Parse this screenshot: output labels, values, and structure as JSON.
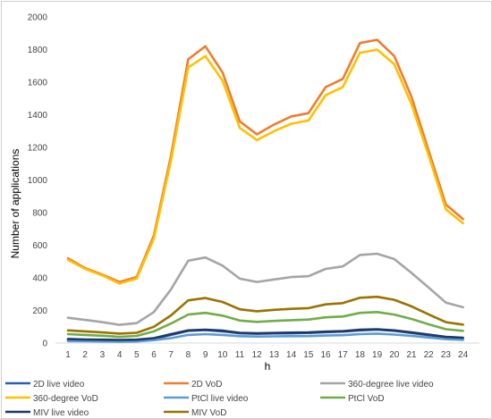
{
  "chart_data": {
    "type": "line",
    "title": "",
    "xlabel": "h",
    "ylabel": "Number of applications",
    "ylim": [
      0,
      2000
    ],
    "yticks": [
      0,
      200,
      400,
      600,
      800,
      1000,
      1200,
      1400,
      1600,
      1800,
      2000
    ],
    "grid": "none",
    "legend_position": "bottom",
    "x": [
      1,
      2,
      3,
      4,
      5,
      6,
      7,
      8,
      9,
      10,
      11,
      12,
      13,
      14,
      15,
      16,
      17,
      18,
      19,
      20,
      21,
      22,
      23,
      24
    ],
    "series": [
      {
        "name": "2D live video",
        "color": "#2E5DAF",
        "values": [
          20,
          18,
          17,
          15,
          17,
          25,
          50,
          75,
          80,
          72,
          60,
          57,
          59,
          60,
          62,
          67,
          70,
          78,
          82,
          75,
          62,
          48,
          35,
          28
        ]
      },
      {
        "name": "2D VoD",
        "color": "#ED7D31",
        "values": [
          520,
          460,
          420,
          375,
          405,
          660,
          1150,
          1740,
          1820,
          1660,
          1360,
          1280,
          1340,
          1390,
          1410,
          1570,
          1620,
          1840,
          1860,
          1760,
          1510,
          1180,
          850,
          760
        ]
      },
      {
        "name": "360-degree live video",
        "color": "#A5A5A5",
        "values": [
          155,
          142,
          128,
          112,
          122,
          190,
          330,
          505,
          525,
          475,
          395,
          375,
          390,
          405,
          410,
          455,
          470,
          540,
          548,
          515,
          430,
          340,
          248,
          220
        ]
      },
      {
        "name": "360-degree VoD",
        "color": "#FFC000",
        "values": [
          510,
          455,
          415,
          365,
          395,
          640,
          1120,
          1690,
          1760,
          1610,
          1320,
          1245,
          1300,
          1345,
          1365,
          1520,
          1570,
          1780,
          1800,
          1710,
          1465,
          1150,
          820,
          735
        ]
      },
      {
        "name": "PtCl live video",
        "color": "#5B9BD5",
        "values": [
          12,
          11,
          10,
          9,
          10,
          18,
          30,
          50,
          55,
          50,
          42,
          40,
          41,
          42,
          43,
          46,
          48,
          55,
          58,
          52,
          44,
          34,
          24,
          20
        ]
      },
      {
        "name": "PtCl VoD",
        "color": "#70AD47",
        "values": [
          55,
          50,
          45,
          38,
          44,
          72,
          120,
          175,
          185,
          168,
          138,
          130,
          136,
          140,
          144,
          158,
          163,
          185,
          190,
          175,
          148,
          115,
          85,
          75
        ]
      },
      {
        "name": "MIV live video",
        "color": "#1F3864",
        "values": [
          25,
          22,
          21,
          19,
          21,
          30,
          55,
          78,
          82,
          76,
          63,
          60,
          62,
          64,
          65,
          70,
          73,
          82,
          85,
          78,
          66,
          52,
          38,
          33
        ]
      },
      {
        "name": "MIV VoD",
        "color": "#997300",
        "values": [
          78,
          72,
          65,
          58,
          63,
          100,
          170,
          262,
          276,
          252,
          207,
          195,
          204,
          210,
          214,
          237,
          245,
          278,
          284,
          265,
          225,
          176,
          128,
          113
        ]
      }
    ]
  }
}
